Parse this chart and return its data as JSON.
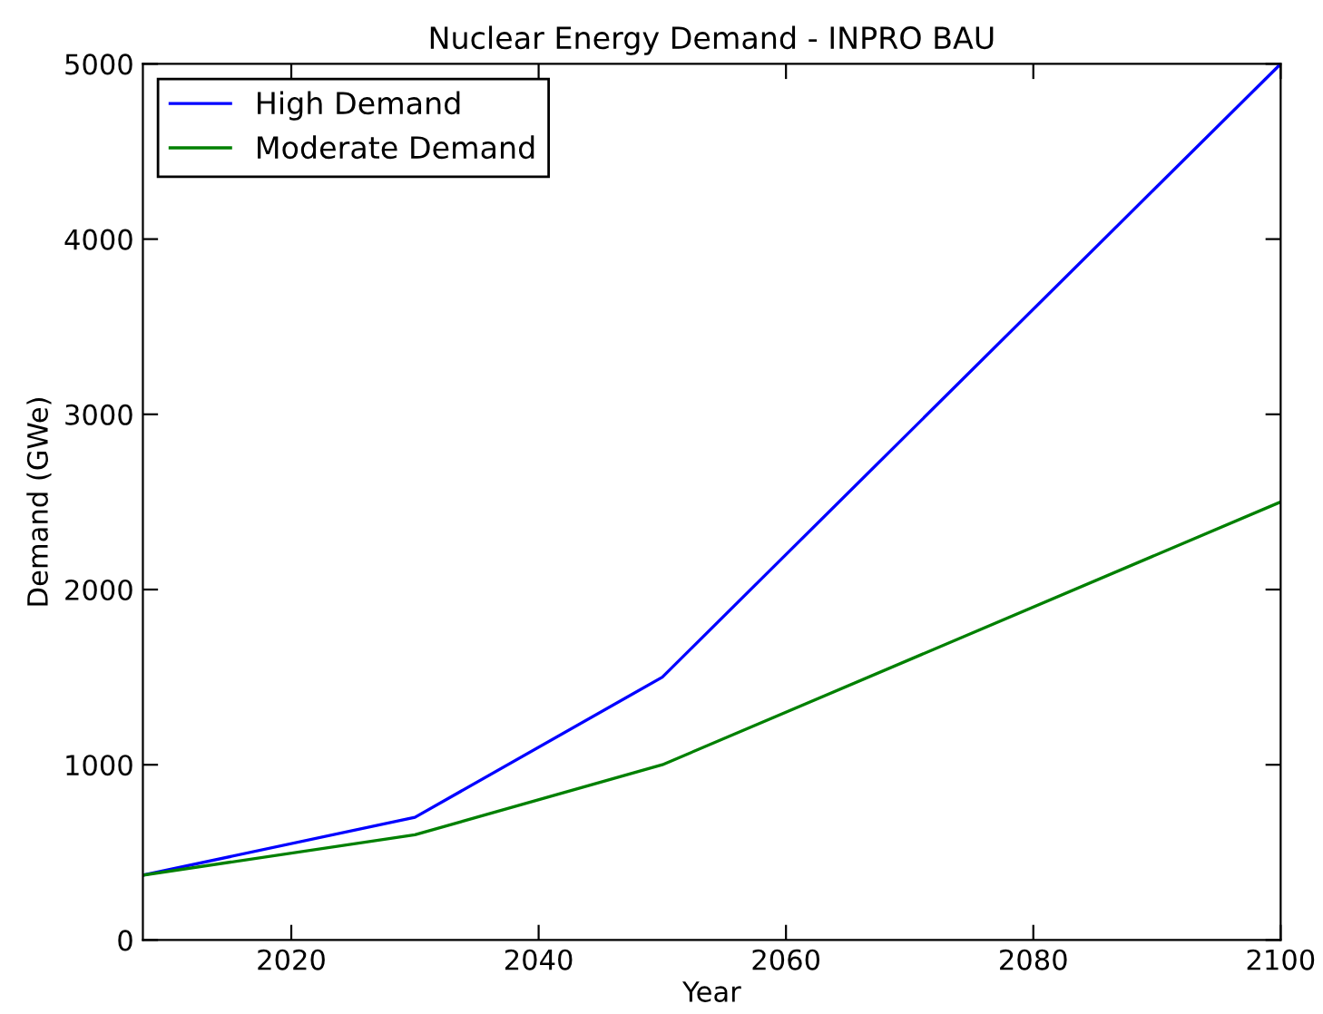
{
  "chart_data": {
    "type": "line",
    "title": "Nuclear Energy Demand - INPRO BAU",
    "xlabel": "Year",
    "ylabel": "Demand (GWe)",
    "x": [
      2008,
      2030,
      2050,
      2100
    ],
    "series": [
      {
        "name": "High Demand",
        "color": "#0000ff",
        "values": [
          370,
          700,
          1500,
          5000
        ]
      },
      {
        "name": "Moderate Demand",
        "color": "#008000",
        "values": [
          370,
          600,
          1000,
          2500
        ]
      }
    ],
    "xlim": [
      2008,
      2100
    ],
    "xticks": [
      2020,
      2040,
      2060,
      2080,
      2100
    ],
    "ylim": [
      0,
      5000
    ],
    "yticks": [
      0,
      1000,
      2000,
      3000,
      4000,
      5000
    ],
    "grid": false,
    "legend": "top left",
    "line_style": "solid",
    "marker": "none"
  }
}
